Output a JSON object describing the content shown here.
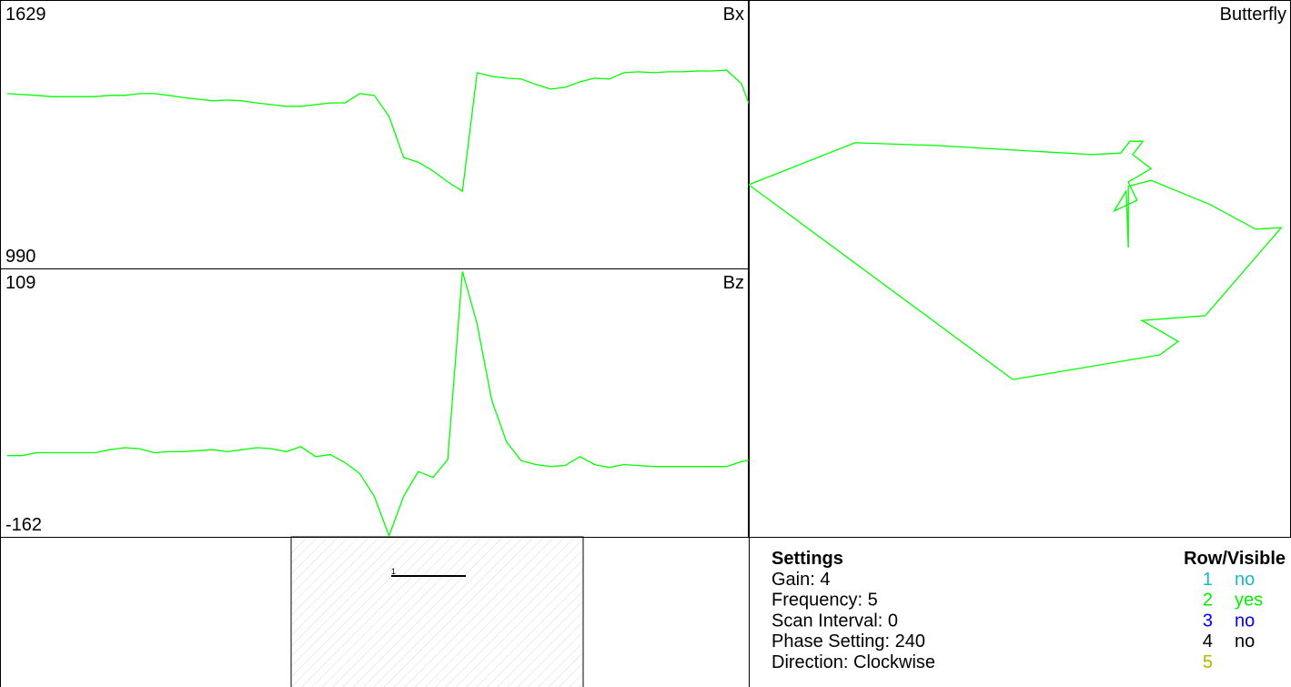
{
  "chart_data": [
    {
      "type": "line",
      "title": "Bx",
      "ylim": [
        990,
        1629
      ],
      "yticks": [
        990,
        1629
      ],
      "series": [
        {
          "color": "#00ff00",
          "values": [
            1406,
            1404,
            1402,
            1399,
            1399,
            1399,
            1399,
            1402,
            1402,
            1406,
            1406,
            1402,
            1397,
            1393,
            1389,
            1391,
            1389,
            1384,
            1380,
            1376,
            1376,
            1380,
            1384,
            1384,
            1406,
            1402,
            1352,
            1254,
            1243,
            1222,
            1196,
            1174,
            1456,
            1447,
            1443,
            1441,
            1428,
            1417,
            1421,
            1434,
            1443,
            1441,
            1456,
            1458,
            1456,
            1458,
            1458,
            1460,
            1460,
            1462,
            1430,
            1337
          ]
        }
      ]
    },
    {
      "type": "line",
      "title": "Bz",
      "ylim": [
        -162,
        109
      ],
      "yticks": [
        -162,
        109
      ],
      "series": [
        {
          "color": "#00ff00",
          "values": [
            -80,
            -80,
            -77,
            -77,
            -77,
            -77,
            -77,
            -74,
            -72,
            -73,
            -77,
            -76,
            -76,
            -75,
            -74,
            -76,
            -74,
            -72,
            -73,
            -76,
            -71,
            -81,
            -79,
            -87,
            -98,
            -121,
            -161,
            -121,
            -96,
            -102,
            -84,
            106,
            53,
            -24,
            -66,
            -85,
            -89,
            -91,
            -90,
            -81,
            -89,
            -92,
            -89,
            -90,
            -91,
            -91,
            -91,
            -91,
            -91,
            -91,
            -86,
            -83
          ]
        }
      ]
    },
    {
      "type": "line",
      "title": "Butterfly",
      "xlim": [
        0,
        100
      ],
      "ylim": [
        0,
        100
      ],
      "x": [
        0,
        19.6,
        34.7,
        63.3,
        68.6,
        70.3,
        72.7,
        70.8,
        74.2,
        70.0,
        71.6,
        67.4,
        69.6,
        70.0,
        70.0,
        74.2,
        85.1,
        93.5,
        98.2,
        84.2,
        72.5,
        79.2,
        75.8,
        48.7,
        0
      ],
      "series": [
        {
          "color": "#00ff00",
          "values": [
            65.6,
            73.4,
            72.9,
            71.2,
            71.5,
            73.7,
            73.7,
            71.2,
            68.6,
            66.1,
            62.7,
            60.7,
            64.4,
            53.9,
            65.3,
            66.4,
            61.9,
            57.3,
            57.6,
            41.2,
            40.3,
            36.4,
            33.9,
            29.3,
            65.6
          ]
        }
      ]
    }
  ],
  "scan": {
    "label": "1"
  },
  "settings": {
    "title": "Settings",
    "lines": [
      "Gain: 4",
      "Frequency: 5",
      "Scan Interval: 0",
      "Phase Setting: 240",
      "Direction: Clockwise"
    ],
    "rows_title": "Row/Visible",
    "rows": [
      {
        "row": "1",
        "visible": "no",
        "color": "#1ab9c4"
      },
      {
        "row": "2",
        "visible": "yes",
        "color": "#00ee00"
      },
      {
        "row": "3",
        "visible": "no",
        "color": "#0000ff"
      },
      {
        "row": "4",
        "visible": "no",
        "color": "#000000"
      },
      {
        "row": "5",
        "color": "#b5b500"
      }
    ]
  }
}
